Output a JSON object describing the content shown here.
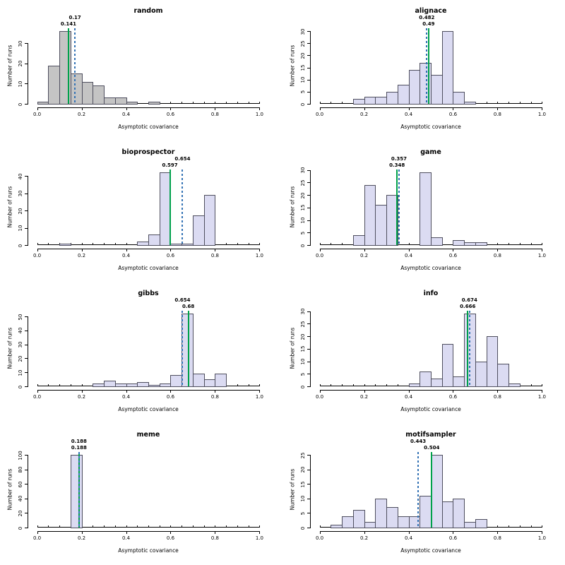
{
  "figure": {
    "xlabel": "Asymptotic covariance",
    "ylabel": "Number of runs",
    "xticks": [
      0.0,
      0.2,
      0.4,
      0.6,
      0.8,
      1.0
    ],
    "bin_width": 0.05,
    "xlim": [
      0,
      1
    ],
    "colors": {
      "background": "#ffffff",
      "gray_fill": "#c4c4c4",
      "lavender_fill": "#dbdbf2",
      "bar_border": "#4e4e5e",
      "solid_line_green": "#00a14b",
      "dashed_line_blue": "#3473b5",
      "axis": "#000000",
      "text": "#000000"
    }
  },
  "chart_data": [
    {
      "type": "bar",
      "title": "random",
      "xlabel": "Asymptotic covariance",
      "ylabel": "Number of runs",
      "fill": "gray",
      "bin_width": 0.05,
      "bin_starts": [
        0.0,
        0.05,
        0.1,
        0.15,
        0.2,
        0.25,
        0.3,
        0.35,
        0.4,
        0.5
      ],
      "counts": [
        1,
        19,
        36,
        15,
        11,
        9,
        3,
        3,
        1,
        1
      ],
      "yticks": [
        0,
        10,
        20,
        30
      ],
      "xticks": [
        0.0,
        0.2,
        0.4,
        0.6,
        0.8,
        1.0
      ],
      "solid_green_line": {
        "value": 0.141,
        "label": "0.141"
      },
      "dashed_blue_line": {
        "value": 0.17,
        "label": "0.17"
      }
    },
    {
      "type": "bar",
      "title": "alignace",
      "xlabel": "Asymptotic covariance",
      "ylabel": "Number of runs",
      "fill": "lavender",
      "bin_width": 0.05,
      "bin_starts": [
        0.15,
        0.2,
        0.25,
        0.3,
        0.35,
        0.4,
        0.45,
        0.5,
        0.55,
        0.6,
        0.65
      ],
      "counts": [
        2,
        3,
        3,
        5,
        8,
        14,
        17,
        12,
        30,
        5,
        1
      ],
      "yticks": [
        0,
        5,
        10,
        15,
        20,
        25,
        30
      ],
      "xticks": [
        0.0,
        0.2,
        0.4,
        0.6,
        0.8,
        1.0
      ],
      "solid_green_line": {
        "value": 0.49,
        "label": "0.49"
      },
      "dashed_blue_line": {
        "value": 0.482,
        "label": "0.482"
      }
    },
    {
      "type": "bar",
      "title": "bioprospector",
      "xlabel": "Asymptotic covariance",
      "ylabel": "Number of runs",
      "fill": "lavender",
      "bin_width": 0.05,
      "bin_starts": [
        0.1,
        0.45,
        0.5,
        0.55,
        0.6,
        0.65,
        0.7,
        0.75
      ],
      "counts": [
        1,
        2,
        6,
        42,
        1,
        1,
        17,
        29
      ],
      "yticks": [
        0,
        10,
        20,
        30,
        40
      ],
      "xticks": [
        0.0,
        0.2,
        0.4,
        0.6,
        0.8,
        1.0
      ],
      "solid_green_line": {
        "value": 0.597,
        "label": "0.597"
      },
      "dashed_blue_line": {
        "value": 0.654,
        "label": "0.654"
      }
    },
    {
      "type": "bar",
      "title": "game",
      "xlabel": "Asymptotic covariance",
      "ylabel": "Number of runs",
      "fill": "lavender",
      "bin_width": 0.05,
      "bin_starts": [
        0.15,
        0.2,
        0.25,
        0.3,
        0.45,
        0.5,
        0.6,
        0.65,
        0.7
      ],
      "counts": [
        4,
        24,
        16,
        20,
        29,
        3,
        2,
        1,
        1
      ],
      "yticks": [
        0,
        5,
        10,
        15,
        20,
        25,
        30
      ],
      "xticks": [
        0.0,
        0.2,
        0.4,
        0.6,
        0.8,
        1.0
      ],
      "solid_green_line": {
        "value": 0.348,
        "label": "0.348"
      },
      "dashed_blue_line": {
        "value": 0.357,
        "label": "0.357"
      }
    },
    {
      "type": "bar",
      "title": "gibbs",
      "xlabel": "Asymptotic covariance",
      "ylabel": "Number of runs",
      "fill": "lavender",
      "bin_width": 0.05,
      "bin_starts": [
        0.25,
        0.3,
        0.35,
        0.4,
        0.45,
        0.5,
        0.55,
        0.6,
        0.65,
        0.7,
        0.75,
        0.8
      ],
      "counts": [
        2,
        4,
        2,
        2,
        3,
        1,
        2,
        8,
        52,
        9,
        5,
        9
      ],
      "yticks": [
        0,
        10,
        20,
        30,
        40,
        50
      ],
      "xticks": [
        0.0,
        0.2,
        0.4,
        0.6,
        0.8,
        1.0
      ],
      "solid_green_line": {
        "value": 0.68,
        "label": "0.68"
      },
      "dashed_blue_line": {
        "value": 0.654,
        "label": "0.654"
      }
    },
    {
      "type": "bar",
      "title": "info",
      "xlabel": "Asymptotic covariance",
      "ylabel": "Number of runs",
      "fill": "lavender",
      "bin_width": 0.05,
      "bin_starts": [
        0.4,
        0.45,
        0.5,
        0.55,
        0.6,
        0.65,
        0.7,
        0.75,
        0.8,
        0.85
      ],
      "counts": [
        1,
        6,
        3,
        17,
        4,
        29,
        10,
        20,
        9,
        1
      ],
      "yticks": [
        0,
        5,
        10,
        15,
        20,
        25,
        30
      ],
      "xticks": [
        0.0,
        0.2,
        0.4,
        0.6,
        0.8,
        1.0
      ],
      "solid_green_line": {
        "value": 0.666,
        "label": "0.666"
      },
      "dashed_blue_line": {
        "value": 0.674,
        "label": "0.674"
      }
    },
    {
      "type": "bar",
      "title": "meme",
      "xlabel": "Asymptotic covariance",
      "ylabel": "Number of runs",
      "fill": "lavender",
      "bin_width": 0.05,
      "bin_starts": [
        0.15
      ],
      "counts": [
        100
      ],
      "yticks": [
        0,
        20,
        40,
        60,
        80,
        100
      ],
      "xticks": [
        0.0,
        0.2,
        0.4,
        0.6,
        0.8,
        1.0
      ],
      "solid_green_line": {
        "value": 0.188,
        "label": "0.188"
      },
      "dashed_blue_line": {
        "value": 0.188,
        "label": "0.188"
      }
    },
    {
      "type": "bar",
      "title": "motifsampler",
      "xlabel": "Asymptotic covariance",
      "ylabel": "Number of runs",
      "fill": "lavender",
      "bin_width": 0.05,
      "bin_starts": [
        0.05,
        0.1,
        0.15,
        0.2,
        0.25,
        0.3,
        0.35,
        0.4,
        0.45,
        0.5,
        0.55,
        0.6,
        0.65,
        0.7
      ],
      "counts": [
        1,
        4,
        6,
        2,
        10,
        7,
        4,
        4,
        11,
        25,
        9,
        10,
        2,
        3
      ],
      "yticks": [
        0,
        5,
        10,
        15,
        20,
        25
      ],
      "xticks": [
        0.0,
        0.2,
        0.4,
        0.6,
        0.8,
        1.0
      ],
      "solid_green_line": {
        "value": 0.504,
        "label": "0.504"
      },
      "dashed_blue_line": {
        "value": 0.443,
        "label": "0.443"
      }
    }
  ]
}
